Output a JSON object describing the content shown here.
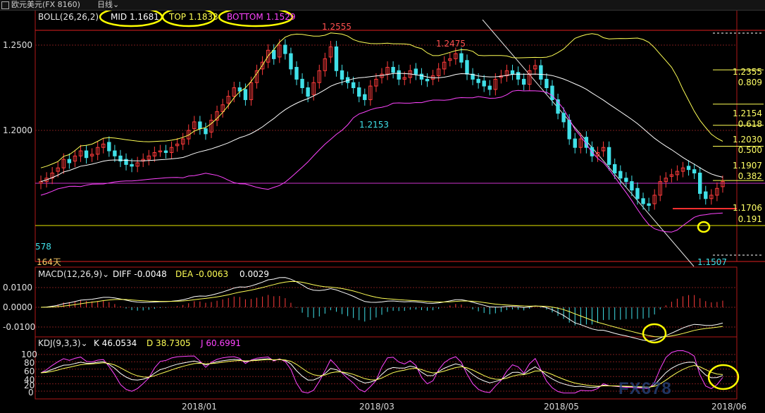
{
  "header": {
    "instrument_title": "欧元美元(FX 8160)",
    "period_label": "日线"
  },
  "boll": {
    "label": "BOLL(26,26,2)",
    "mid_label": "MID 1.1681",
    "top_label": "TOP 1.1833",
    "bottom_label": "BOTTOM 1.1529"
  },
  "price_axis": {
    "ticks": [
      "1.2500",
      "1.2000"
    ]
  },
  "macd": {
    "label": "MACD(12,26,9)",
    "diff_label": "DIFF -0.0048",
    "dea_label": "DEA -0.0063",
    "macd_value": "0.0029",
    "ticks": [
      "0.0100",
      "0.0000",
      "-0.0100"
    ]
  },
  "kdj": {
    "label": "KDJ(9,3,3)",
    "k_label": "K 46.0534",
    "d_label": "D 38.7305",
    "j_label": "J 60.6991",
    "ticks": [
      "100",
      "80",
      "60",
      "40",
      "20",
      "0"
    ]
  },
  "x_axis": {
    "labels": [
      "2018/01",
      "2018/03",
      "2018/05",
      "2018/06"
    ]
  },
  "annotations": {
    "high_1": "1.2555",
    "high_2": "1.2475",
    "low_1": "1.2153",
    "low_2": "1.1507",
    "left_low": "578",
    "days": "164天"
  },
  "fib_levels": [
    {
      "price": "1.2355",
      "ratio": "0.809"
    },
    {
      "price": "1.2154",
      "ratio": "0.618"
    },
    {
      "price": "1.2030",
      "ratio": "0.500"
    },
    {
      "price": "1.1907",
      "ratio": "0.382"
    },
    {
      "price": "1.1706",
      "ratio": "0.191"
    }
  ],
  "watermark": "FX678",
  "colors": {
    "up": "#ff3b3b",
    "down": "#40e0e8",
    "mid": "#ffffff",
    "top_band": "#ffff55",
    "bottom_band": "#ff44ff",
    "fib": "#ffff55",
    "frame": "#b01818"
  },
  "chart_data": {
    "type": "candlestick",
    "instrument": "欧元美元",
    "x": [
      "2018/01",
      "2018/03",
      "2018/05",
      "2018/06"
    ],
    "price_ticks": [
      1.25,
      1.2
    ],
    "boll_mid": 1.1681,
    "boll_top": 1.1833,
    "boll_bottom": 1.1529,
    "labels": {
      "high_1": 1.2555,
      "high_2": 1.2475,
      "low_1": 1.2153,
      "low_2": 1.1507
    },
    "fib_retracement": [
      {
        "price": 1.2355,
        "ratio": 0.809
      },
      {
        "price": 1.2154,
        "ratio": 0.618
      },
      {
        "price": 1.203,
        "ratio": 0.5
      },
      {
        "price": 1.1907,
        "ratio": 0.382
      },
      {
        "price": 1.1706,
        "ratio": 0.191
      }
    ],
    "ohlc_close_est": [
      1.17,
      1.172,
      1.175,
      1.178,
      1.183,
      1.181,
      1.185,
      1.188,
      1.184,
      1.186,
      1.19,
      1.192,
      1.188,
      1.185,
      1.182,
      1.18,
      1.179,
      1.181,
      1.183,
      1.185,
      1.187,
      1.188,
      1.187,
      1.19,
      1.192,
      1.195,
      1.2,
      1.205,
      1.201,
      1.198,
      1.206,
      1.211,
      1.215,
      1.22,
      1.225,
      1.223,
      1.218,
      1.228,
      1.235,
      1.24,
      1.247,
      1.242,
      1.25,
      1.245,
      1.236,
      1.23,
      1.225,
      1.22,
      1.228,
      1.235,
      1.242,
      1.249,
      1.235,
      1.23,
      1.228,
      1.225,
      1.22,
      1.218,
      1.226,
      1.23,
      1.233,
      1.237,
      1.234,
      1.23,
      1.231,
      1.235,
      1.233,
      1.23,
      1.229,
      1.232,
      1.236,
      1.24,
      1.242,
      1.245,
      1.24,
      1.233,
      1.23,
      1.228,
      1.226,
      1.224,
      1.23,
      1.232,
      1.235,
      1.233,
      1.23,
      1.227,
      1.235,
      1.238,
      1.23,
      1.225,
      1.218,
      1.21,
      1.205,
      1.195,
      1.19,
      1.195,
      1.19,
      1.185,
      1.187,
      1.19,
      1.18,
      1.175,
      1.172,
      1.17,
      1.165,
      1.16,
      1.157,
      1.156,
      1.162,
      1.17,
      1.172,
      1.174,
      1.176,
      1.178,
      1.177,
      1.175,
      1.163,
      1.16,
      1.162,
      1.166,
      1.17
    ]
  }
}
